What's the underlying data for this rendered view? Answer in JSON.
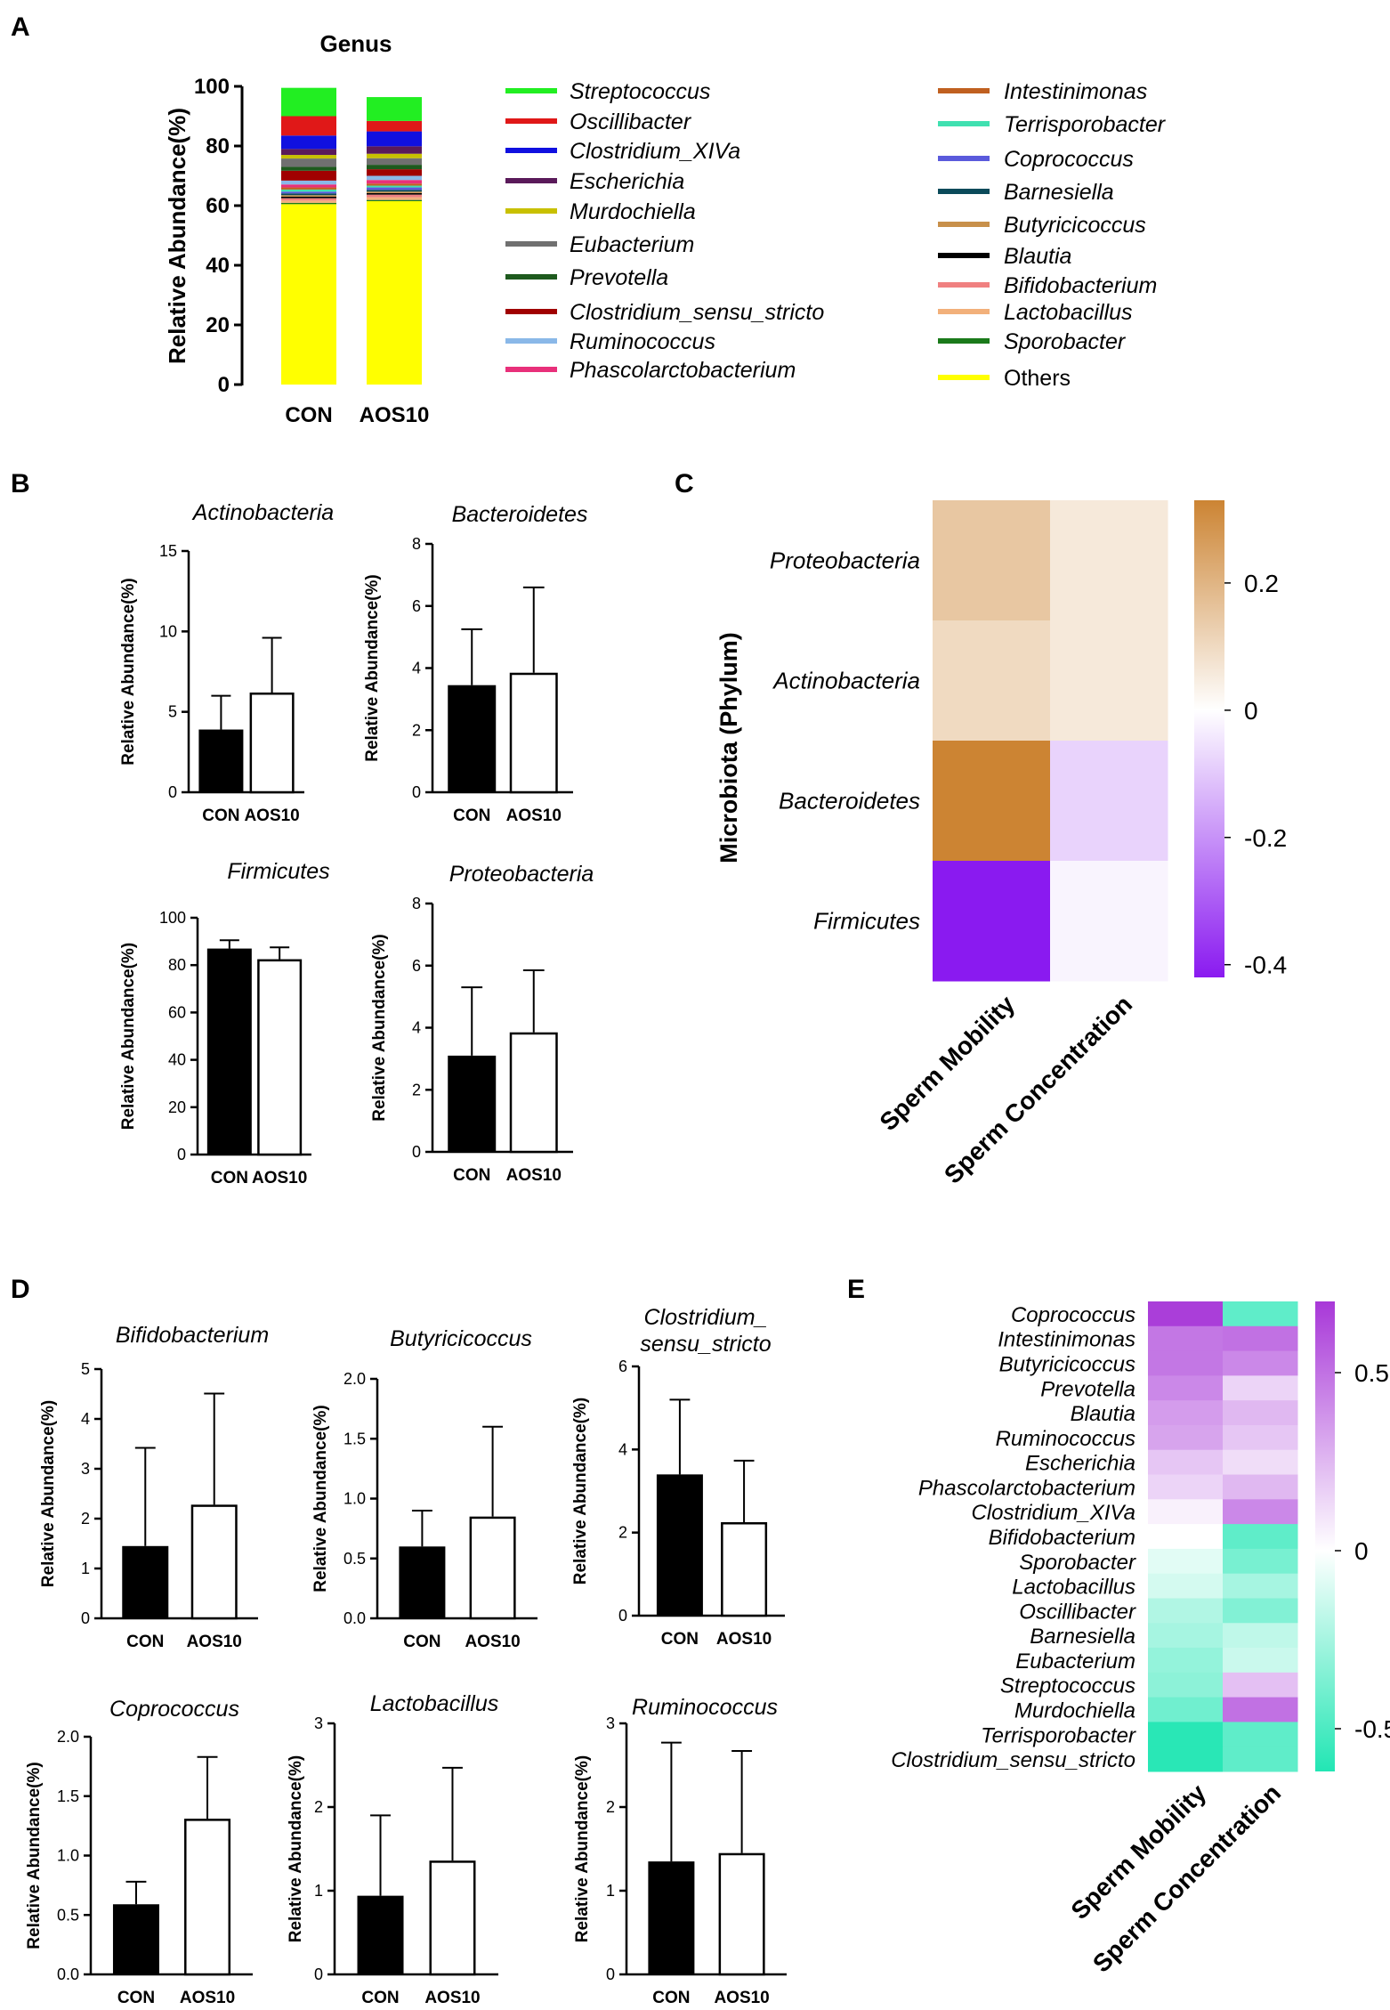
{
  "panels": {
    "A": "A",
    "B": "B",
    "C": "C",
    "D": "D",
    "E": "E"
  },
  "chart_data": [
    {
      "id": "A",
      "type": "bar",
      "stacked": true,
      "title": "Genus",
      "xlabel": "",
      "ylabel": "Relative Abundance(%)",
      "ylim": [
        0,
        100
      ],
      "yticks": [
        "0",
        "20",
        "40",
        "60",
        "80",
        "100"
      ],
      "categories": [
        "CON",
        "AOS10"
      ],
      "series": [
        {
          "name": "Others",
          "color": "#ffff00",
          "values": [
            60.5,
            61.5
          ],
          "italic": false
        },
        {
          "name": "Sporobacter",
          "color": "#1a7a1a",
          "values": [
            0.4,
            0.4
          ]
        },
        {
          "name": "Lactobacillus",
          "color": "#f2b07a",
          "values": [
            0.8,
            0.9
          ]
        },
        {
          "name": "Bifidobacterium",
          "color": "#f08080",
          "values": [
            0.8,
            0.9
          ]
        },
        {
          "name": "Blautia",
          "color": "#000000",
          "values": [
            0.5,
            0.5
          ]
        },
        {
          "name": "Butyricicoccus",
          "color": "#c8904a",
          "values": [
            0.5,
            0.5
          ]
        },
        {
          "name": "Barnesiella",
          "color": "#0b4a5a",
          "values": [
            0.6,
            0.6
          ]
        },
        {
          "name": "Coprococcus",
          "color": "#5a5adc",
          "values": [
            0.6,
            0.8
          ]
        },
        {
          "name": "Terrisporobacter",
          "color": "#40e0b0",
          "values": [
            0.7,
            0.6
          ]
        },
        {
          "name": "Intestinimonas",
          "color": "#c06020",
          "values": [
            0.7,
            0.7
          ]
        },
        {
          "name": "Phascolarctobacterium",
          "color": "#e8307a",
          "values": [
            1.0,
            1.2
          ]
        },
        {
          "name": "Ruminococcus",
          "color": "#8ab8e8",
          "values": [
            1.3,
            1.4
          ]
        },
        {
          "name": "Clostridium_sensu_stricto",
          "color": "#a00000",
          "values": [
            3.3,
            2.2
          ]
        },
        {
          "name": "Prevotella",
          "color": "#1e5a1e",
          "values": [
            1.3,
            1.5
          ]
        },
        {
          "name": "Eubacterium",
          "color": "#707070",
          "values": [
            2.8,
            2.2
          ]
        },
        {
          "name": "Murdochiella",
          "color": "#c8c000",
          "values": [
            1.2,
            1.5
          ]
        },
        {
          "name": "Escherichia",
          "color": "#5a1a5a",
          "values": [
            2.0,
            2.5
          ]
        },
        {
          "name": "Clostridium_XIVa",
          "color": "#1010e0",
          "values": [
            4.5,
            5.0
          ]
        },
        {
          "name": "Oscillibacter",
          "color": "#e01818",
          "values": [
            6.5,
            3.5
          ]
        },
        {
          "name": "Streptococcus",
          "color": "#22ee22",
          "values": [
            9.5,
            8.0
          ]
        }
      ],
      "legend_col1": [
        "Streptococcus",
        "Oscillibacter",
        "Clostridium_XIVa",
        "Escherichia",
        "Murdochiella",
        "Eubacterium",
        "Prevotella",
        "Clostridium_sensu_stricto",
        "Ruminococcus",
        "Phascolarctobacterium"
      ],
      "legend_col2": [
        "Intestinimonas",
        "Terrisporobacter",
        "Coprococcus",
        "Barnesiella",
        "Butyricicoccus",
        "Blautia",
        "Bifidobacterium",
        "Lactobacillus",
        "Sporobacter",
        "Others"
      ]
    },
    {
      "id": "B",
      "type": "bar",
      "ylabel": "Relative Abundance(%)",
      "categories": [
        "CON",
        "AOS10"
      ],
      "subplots": [
        {
          "title": "Actinobacteria",
          "ylim": [
            0,
            15
          ],
          "yticks": [
            "0",
            "5",
            "10",
            "15"
          ],
          "values": [
            3.9,
            6.2
          ],
          "errors": [
            2.1,
            3.4
          ]
        },
        {
          "title": "Bacteroidetes",
          "ylim": [
            0,
            8
          ],
          "yticks": [
            "0",
            "2",
            "4",
            "6",
            "8"
          ],
          "values": [
            3.45,
            3.85
          ],
          "errors": [
            1.8,
            2.75
          ]
        },
        {
          "title": "Firmicutes",
          "ylim": [
            0,
            100
          ],
          "yticks": [
            "0",
            "20",
            "40",
            "60",
            "80",
            "100"
          ],
          "values": [
            87,
            82.5
          ],
          "errors": [
            3.5,
            5.0
          ]
        },
        {
          "title": "Proteobacteria",
          "ylim": [
            0,
            8
          ],
          "yticks": [
            "0",
            "2",
            "4",
            "6",
            "8"
          ],
          "values": [
            3.1,
            3.85
          ],
          "errors": [
            2.2,
            2.0
          ]
        }
      ]
    },
    {
      "id": "C",
      "type": "heatmap",
      "ylabel": "Microbiota (Phylum)",
      "rows": [
        "Proteobacteria",
        "Actinobacteria",
        "Bacteroidetes",
        "Firmicutes"
      ],
      "columns": [
        "Sperm Mobility",
        "Sperm Concentration"
      ],
      "values": [
        [
          0.15,
          0.06
        ],
        [
          0.1,
          0.06
        ],
        [
          0.33,
          -0.08
        ],
        [
          -0.42,
          -0.02
        ]
      ],
      "colorbar": {
        "range": [
          -0.42,
          0.33
        ],
        "ticks": [
          0.2,
          0,
          -0.2,
          -0.4
        ],
        "tick_labels": [
          "0.2",
          "0",
          "-0.2",
          "-0.4"
        ],
        "low": "#8a1af0",
        "mid": "#ffffff",
        "high": "#cc8433"
      }
    },
    {
      "id": "D",
      "type": "bar",
      "ylabel": "Relative Abundance(%)",
      "categories": [
        "CON",
        "AOS10"
      ],
      "subplots": [
        {
          "title": "Bifidobacterium",
          "ylim": [
            0,
            5
          ],
          "yticks": [
            "0",
            "1",
            "2",
            "3",
            "4",
            "5"
          ],
          "values": [
            1.45,
            2.28
          ],
          "errors": [
            1.97,
            2.23
          ]
        },
        {
          "title": "Butyricicoccus",
          "ylim": [
            0,
            2.0
          ],
          "yticks": [
            "0.0",
            "0.5",
            "1.0",
            "1.5",
            "2.0"
          ],
          "values": [
            0.6,
            0.85
          ],
          "errors": [
            0.3,
            0.75
          ]
        },
        {
          "title": "Clostridium_ sensu_stricto",
          "title_lines": [
            "Clostridium_",
            "sensu_stricto"
          ],
          "ylim": [
            0,
            6
          ],
          "yticks": [
            "0",
            "2",
            "4",
            "6"
          ],
          "values": [
            3.4,
            2.25
          ],
          "errors": [
            1.8,
            1.48
          ]
        },
        {
          "title": "Coprococcus",
          "ylim": [
            0,
            2.0
          ],
          "yticks": [
            "0.0",
            "0.5",
            "1.0",
            "1.5",
            "2.0"
          ],
          "values": [
            0.59,
            1.31
          ],
          "errors": [
            0.19,
            0.52
          ]
        },
        {
          "title": "Lactobacillus",
          "ylim": [
            0,
            3
          ],
          "yticks": [
            "0",
            "1",
            "2",
            "3"
          ],
          "values": [
            0.94,
            1.36
          ],
          "errors": [
            0.96,
            1.11
          ]
        },
        {
          "title": "Ruminococcus",
          "ylim": [
            0,
            3
          ],
          "yticks": [
            "0",
            "1",
            "2",
            "3"
          ],
          "values": [
            1.35,
            1.45
          ],
          "errors": [
            1.42,
            1.22
          ]
        }
      ]
    },
    {
      "id": "E",
      "type": "heatmap",
      "rows": [
        "Coprococcus",
        "Intestinimonas",
        "Butyricicoccus",
        "Prevotella",
        "Blautia",
        "Ruminococcus",
        "Escherichia",
        "Phascolarctobacterium",
        "Clostridium_XIVa",
        "Bifidobacterium",
        "Sporobacter",
        "Lactobacillus",
        "Oscillibacter",
        "Barnesiella",
        "Eubacterium",
        "Streptococcus",
        "Murdochiella",
        "Terrisporobacter",
        "Clostridium_sensu_stricto"
      ],
      "columns": [
        "Sperm Mobility",
        "Sperm Concentration"
      ],
      "values": [
        [
          0.68,
          -0.45
        ],
        [
          0.48,
          0.5
        ],
        [
          0.48,
          0.42
        ],
        [
          0.42,
          0.15
        ],
        [
          0.35,
          0.25
        ],
        [
          0.32,
          0.2
        ],
        [
          0.2,
          0.12
        ],
        [
          0.15,
          0.25
        ],
        [
          0.05,
          0.42
        ],
        [
          0.0,
          -0.45
        ],
        [
          -0.08,
          -0.38
        ],
        [
          -0.12,
          -0.25
        ],
        [
          -0.22,
          -0.35
        ],
        [
          -0.25,
          -0.18
        ],
        [
          -0.3,
          -0.15
        ],
        [
          -0.32,
          0.22
        ],
        [
          -0.4,
          0.5
        ],
        [
          -0.6,
          -0.45
        ],
        [
          -0.6,
          -0.45
        ]
      ],
      "colorbar": {
        "range": [
          -0.62,
          0.7
        ],
        "ticks": [
          0.5,
          0,
          -0.5
        ],
        "tick_labels": [
          "0.5",
          "0",
          "-0.5"
        ],
        "low": "#22e6b4",
        "mid": "#ffffff",
        "high": "#a838d8"
      }
    }
  ]
}
